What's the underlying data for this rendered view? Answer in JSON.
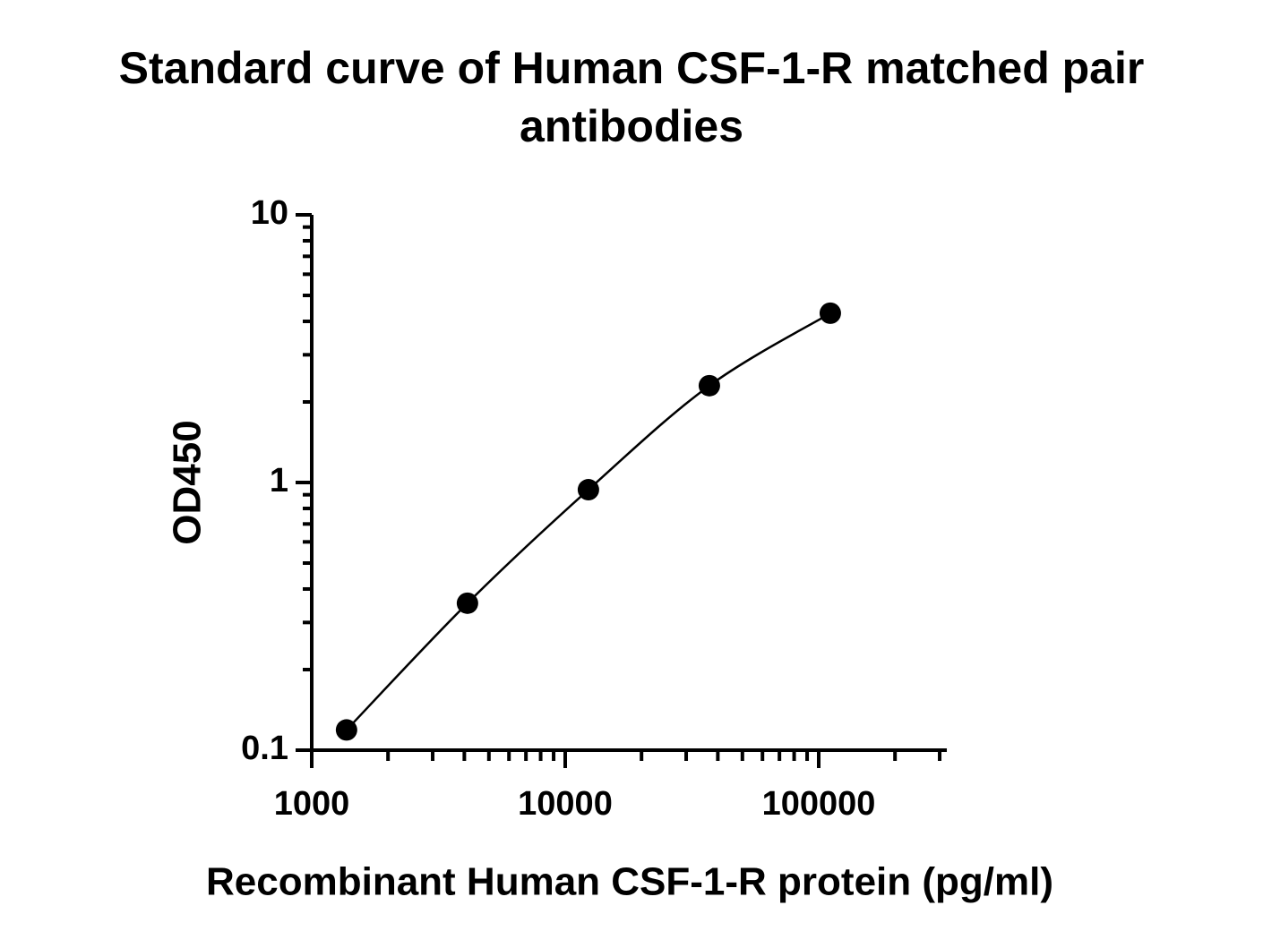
{
  "chart_data": {
    "type": "scatter",
    "title": "Standard curve of Human CSF-1-R matched pair antibodies",
    "xlabel": "Recombinant Human CSF-1-R protein (pg/ml)",
    "ylabel": "OD450",
    "x": [
      1372,
      4115,
      12346,
      37037,
      111111
    ],
    "series": [
      {
        "color": "#000000",
        "values": [
          0.119,
          0.354,
          0.94,
          2.3,
          4.29
        ]
      }
    ],
    "xscale": "log",
    "yscale": "log",
    "xlim": [
      1000,
      300000
    ],
    "ylim": [
      0.1,
      10
    ],
    "xticks": [
      1000,
      10000,
      100000
    ],
    "yticks": [
      0.1,
      1,
      10
    ],
    "xticks_minor": [
      2000,
      3000,
      4000,
      5000,
      6000,
      7000,
      8000,
      9000,
      20000,
      30000,
      40000,
      50000,
      60000,
      70000,
      80000,
      90000,
      200000,
      300000
    ],
    "yticks_minor": [
      0.2,
      0.3,
      0.4,
      0.5,
      0.6,
      0.7,
      0.8,
      0.9,
      2,
      3,
      4,
      5,
      6,
      7,
      8,
      9
    ],
    "grid": false
  }
}
